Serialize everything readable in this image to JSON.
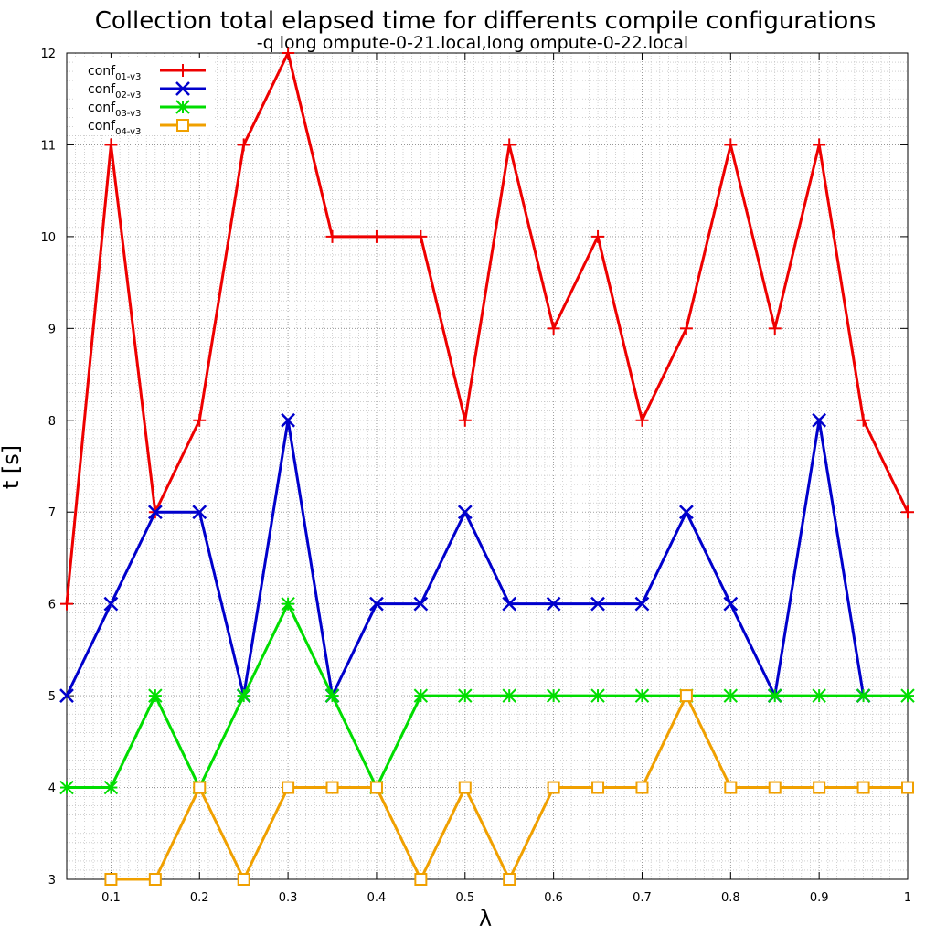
{
  "chart_data": {
    "type": "line",
    "title": "Collection total elapsed time for differents compile configurations",
    "subtitle": "-q long ompute-0-21.local,long ompute-0-22.local",
    "xlabel": "λ",
    "ylabel": "t [s]",
    "xlim": [
      0.05,
      1.0
    ],
    "ylim": [
      3,
      12
    ],
    "x_ticks": [
      "0.1",
      "0.2",
      "0.3",
      "0.4",
      "0.5",
      "0.6",
      "0.7",
      "0.8",
      "0.9",
      "1"
    ],
    "y_ticks": [
      "3",
      "4",
      "5",
      "6",
      "7",
      "8",
      "9",
      "10",
      "11",
      "12"
    ],
    "grid": true,
    "legend_position": "top-left",
    "series": [
      {
        "name": "conf",
        "name_sub": "01-v3",
        "color": "#ee0000",
        "marker": "plus",
        "x": [
          0.05,
          0.1,
          0.15,
          0.2,
          0.25,
          0.3,
          0.35,
          0.4,
          0.45,
          0.5,
          0.55,
          0.6,
          0.65,
          0.7,
          0.75,
          0.8,
          0.85,
          0.9,
          0.95,
          1.0
        ],
        "y": [
          6,
          11,
          7,
          8,
          11,
          12,
          10,
          10,
          10,
          8,
          11,
          9,
          10,
          8,
          9,
          11,
          9,
          11,
          8,
          7
        ]
      },
      {
        "name": "conf",
        "name_sub": "02-v3",
        "color": "#0000cc",
        "marker": "cross",
        "x": [
          0.05,
          0.1,
          0.15,
          0.2,
          0.25,
          0.3,
          0.35,
          0.4,
          0.45,
          0.5,
          0.55,
          0.6,
          0.65,
          0.7,
          0.75,
          0.8,
          0.85,
          0.9,
          0.95
        ],
        "y": [
          5,
          6,
          7,
          7,
          5,
          8,
          5,
          6,
          6,
          7,
          6,
          6,
          6,
          6,
          7,
          6,
          5,
          8,
          5
        ]
      },
      {
        "name": "conf",
        "name_sub": "03-v3",
        "color": "#00dd00",
        "marker": "star",
        "x": [
          0.05,
          0.1,
          0.15,
          0.2,
          0.25,
          0.3,
          0.35,
          0.4,
          0.45,
          0.5,
          0.55,
          0.6,
          0.65,
          0.7,
          0.75,
          0.8,
          0.85,
          0.9,
          0.95,
          1.0
        ],
        "y": [
          4,
          4,
          5,
          4,
          5,
          6,
          5,
          4,
          5,
          5,
          5,
          5,
          5,
          5,
          5,
          5,
          5,
          5,
          5,
          5
        ]
      },
      {
        "name": "conf",
        "name_sub": "04-v3",
        "color": "#f0a000",
        "marker": "square",
        "x": [
          0.1,
          0.15,
          0.2,
          0.25,
          0.3,
          0.35,
          0.4,
          0.45,
          0.5,
          0.55,
          0.6,
          0.65,
          0.7,
          0.75,
          0.8,
          0.85,
          0.9,
          0.95,
          1.0
        ],
        "y": [
          3,
          3,
          4,
          3,
          4,
          4,
          4,
          3,
          4,
          3,
          4,
          4,
          4,
          5,
          4,
          4,
          4,
          4,
          4
        ]
      }
    ]
  }
}
